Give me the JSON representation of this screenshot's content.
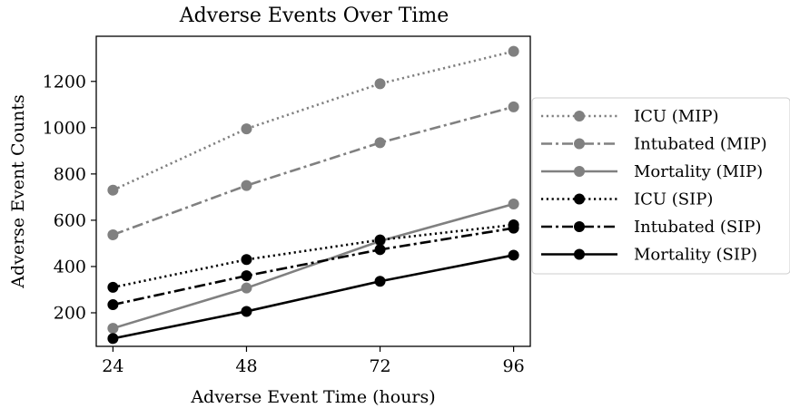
{
  "chart_data": {
    "type": "line",
    "title": "Adverse Events Over Time",
    "xlabel": "Adverse Event Time (hours)",
    "ylabel": "Adverse Event Counts",
    "x": [
      24,
      48,
      72,
      96
    ],
    "xticks": [
      "24",
      "48",
      "72",
      "96"
    ],
    "yticks": [
      200,
      400,
      600,
      800,
      1000,
      1200
    ],
    "xlim": [
      21,
      99
    ],
    "ylim": [
      55,
      1395
    ],
    "grid": false,
    "legend_position": "right",
    "series": [
      {
        "name": "ICU (MIP)",
        "values": [
          730,
          995,
          1190,
          1330
        ],
        "color": "#808080",
        "dash": "dotted"
      },
      {
        "name": "Intubated (MIP)",
        "values": [
          537,
          750,
          935,
          1090
        ],
        "color": "#808080",
        "dash": "dashdot"
      },
      {
        "name": "Mortality (MIP)",
        "values": [
          133,
          307,
          510,
          670
        ],
        "color": "#808080",
        "dash": "solid"
      },
      {
        "name": "ICU (SIP)",
        "values": [
          310,
          430,
          515,
          580
        ],
        "color": "#000000",
        "dash": "dotted"
      },
      {
        "name": "Intubated (SIP)",
        "values": [
          235,
          360,
          473,
          566
        ],
        "color": "#000000",
        "dash": "dashdot"
      },
      {
        "name": "Mortality (SIP)",
        "values": [
          89,
          206,
          336,
          449
        ],
        "color": "#000000",
        "dash": "solid"
      }
    ]
  }
}
